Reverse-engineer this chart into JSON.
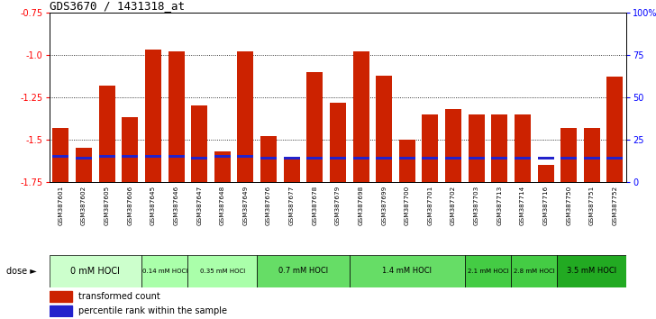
{
  "title": "GDS3670 / 1431318_at",
  "samples": [
    "GSM387601",
    "GSM387602",
    "GSM387605",
    "GSM387606",
    "GSM387645",
    "GSM387646",
    "GSM387647",
    "GSM387648",
    "GSM387649",
    "GSM387676",
    "GSM387677",
    "GSM387678",
    "GSM387679",
    "GSM387698",
    "GSM387699",
    "GSM387700",
    "GSM387701",
    "GSM387702",
    "GSM387703",
    "GSM387713",
    "GSM387714",
    "GSM387716",
    "GSM387750",
    "GSM387751",
    "GSM387752"
  ],
  "red_values": [
    -1.43,
    -1.55,
    -1.18,
    -1.37,
    -0.97,
    -0.98,
    -1.3,
    -1.57,
    -0.98,
    -1.48,
    -1.62,
    -1.1,
    -1.28,
    -0.98,
    -1.12,
    -1.5,
    -1.35,
    -1.32,
    -1.35,
    -1.35,
    -1.35,
    -1.65,
    -1.43,
    -1.43,
    -1.13
  ],
  "blue_percentiles": [
    15,
    14,
    15,
    15,
    15,
    15,
    14,
    15,
    15,
    14,
    14,
    14,
    14,
    14,
    14,
    14,
    14,
    14,
    14,
    14,
    14,
    14,
    14,
    14,
    14
  ],
  "dose_groups": [
    {
      "label": "0 mM HOCl",
      "start": 0,
      "end": 4,
      "color": "#ccffcc",
      "fontsize": 7
    },
    {
      "label": "0.14 mM HOCl",
      "start": 4,
      "end": 6,
      "color": "#aaffaa",
      "fontsize": 5
    },
    {
      "label": "0.35 mM HOCl",
      "start": 6,
      "end": 9,
      "color": "#aaffaa",
      "fontsize": 5
    },
    {
      "label": "0.7 mM HOCl",
      "start": 9,
      "end": 13,
      "color": "#66dd66",
      "fontsize": 6
    },
    {
      "label": "1.4 mM HOCl",
      "start": 13,
      "end": 18,
      "color": "#66dd66",
      "fontsize": 6
    },
    {
      "label": "2.1 mM HOCl",
      "start": 18,
      "end": 20,
      "color": "#44cc44",
      "fontsize": 5
    },
    {
      "label": "2.8 mM HOCl",
      "start": 20,
      "end": 22,
      "color": "#44cc44",
      "fontsize": 5
    },
    {
      "label": "3.5 mM HOCl",
      "start": 22,
      "end": 25,
      "color": "#22aa22",
      "fontsize": 6
    }
  ],
  "ylim_left": [
    -1.75,
    -0.75
  ],
  "ylim_right": [
    0,
    100
  ],
  "yticks_left": [
    -1.75,
    -1.5,
    -1.25,
    -1.0,
    -0.75
  ],
  "yticks_right": [
    0,
    25,
    50,
    75,
    100
  ],
  "bar_color": "#cc2200",
  "blue_color": "#2222cc",
  "bg_plot": "#ffffff",
  "bg_label": "#c0c0c0",
  "gridline_color": "#000000",
  "bar_width": 0.7
}
